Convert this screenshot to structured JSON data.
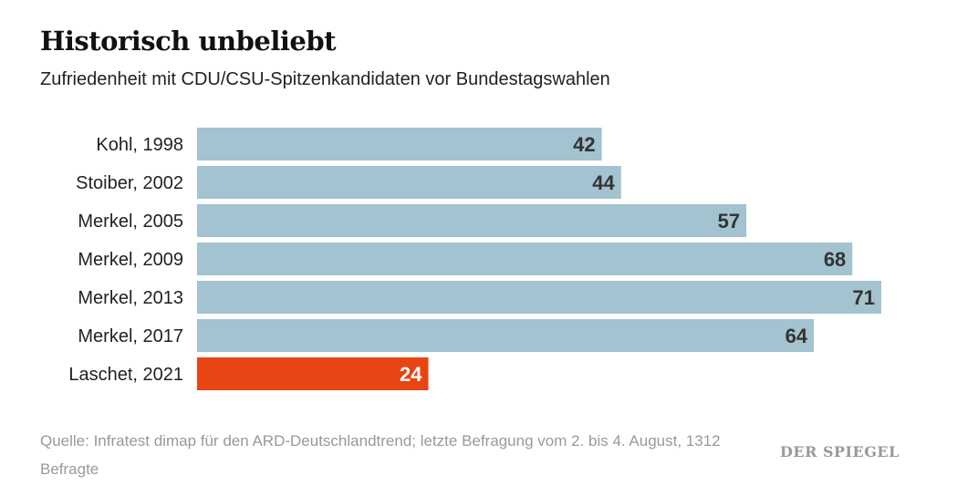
{
  "chart_data": {
    "type": "bar",
    "orientation": "horizontal",
    "title": "Historisch unbeliebt",
    "subtitle": "Zufriedenheit mit CDU/CSU-Spitzenkandidaten vor Bundestagswahlen",
    "categories": [
      "Kohl, 1998",
      "Stoiber, 2002",
      "Merkel, 2005",
      "Merkel, 2009",
      "Merkel, 2013",
      "Merkel, 2017",
      "Laschet, 2021"
    ],
    "values": [
      42,
      44,
      57,
      68,
      71,
      64,
      24
    ],
    "highlight_index": 6,
    "xlim": [
      0,
      71
    ],
    "grid": false,
    "colors": {
      "bar": "#a3c3d0",
      "highlight": "#e84414",
      "label": "#333333",
      "highlight_label": "#ffffff"
    }
  },
  "source": "Quelle: Infratest dimap für den ARD-Deutschlandtrend; letzte Befragung vom 2. bis 4. August, 1312 Befragte",
  "logo": "DER SPIEGEL"
}
